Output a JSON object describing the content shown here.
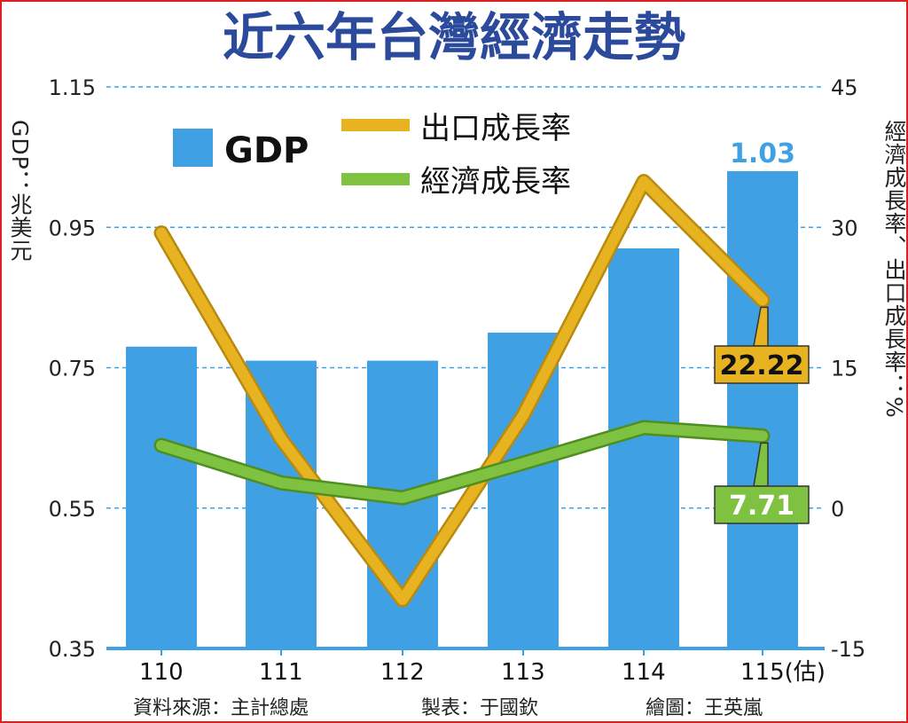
{
  "chart_data": {
    "type": "bar+line",
    "title": "近六年台灣經濟走勢",
    "categories": [
      "110",
      "111",
      "112",
      "113",
      "114",
      "115(估)"
    ],
    "left_axis": {
      "label": "GDP：兆美元",
      "ylim": [
        0.35,
        1.15
      ],
      "ticks": [
        "0.35",
        "0.55",
        "0.75",
        "0.95",
        "1.15"
      ]
    },
    "right_axis": {
      "label": "經濟成長率、出口成長率：%",
      "ylim": [
        -15,
        45
      ],
      "ticks": [
        "-15",
        "0",
        "15",
        "30",
        "45"
      ]
    },
    "series": [
      {
        "name": "GDP",
        "kind": "bar",
        "axis": "left",
        "color": "#3fa1e3",
        "values": [
          0.78,
          0.76,
          0.76,
          0.8,
          0.92,
          1.03
        ]
      },
      {
        "name": "出口成長率",
        "kind": "line",
        "axis": "right",
        "color": "#e8b321",
        "values": [
          29.4,
          7.4,
          -9.8,
          9.9,
          34.9,
          22.22
        ]
      },
      {
        "name": "經濟成長率",
        "kind": "line",
        "axis": "right",
        "color": "#7fc241",
        "values": [
          6.7,
          2.7,
          1.1,
          4.8,
          8.6,
          7.71
        ]
      }
    ],
    "data_labels": {
      "gdp_last": "1.03",
      "export_last": "22.22",
      "growth_last": "7.71"
    },
    "legend": {
      "position": "top-left",
      "entries": [
        "GDP",
        "出口成長率",
        "經濟成長率"
      ]
    },
    "grid": true,
    "footer": {
      "source": "資料來源：主計總處",
      "table": "製表：于國欽",
      "drawing": "繪圖：王英嵐"
    }
  }
}
